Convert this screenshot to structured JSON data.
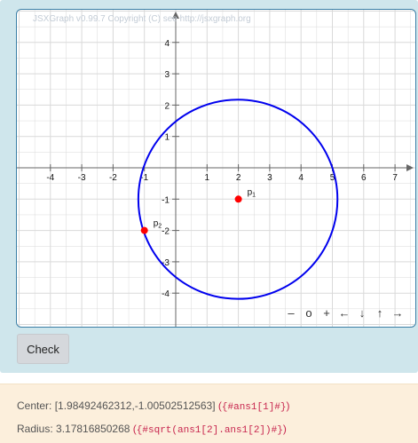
{
  "board": {
    "watermark": "JSXGraph v0.99.7 Copyright (C) see http://jsxgraph.org",
    "x_ticks": [
      "-4",
      "-3",
      "-2",
      "-1",
      "1",
      "2",
      "3",
      "4",
      "5",
      "6",
      "7"
    ],
    "y_ticks": [
      "4",
      "3",
      "2",
      "1",
      "-1",
      "-2",
      "-3",
      "-4"
    ],
    "points": [
      {
        "name": "p",
        "sub": "1",
        "x": 2,
        "y": -1
      },
      {
        "name": "p",
        "sub": "2",
        "x": -1,
        "y": -2
      }
    ],
    "circle": {
      "cx": 1.98492462312,
      "cy": -1.00502512563,
      "r": 3.17816850268
    },
    "colors": {
      "circle": "#0000ee",
      "point": "#ff0000",
      "grid": "#d9d9d9",
      "axis": "#666666"
    },
    "navigation": [
      "–",
      "o",
      "+",
      "←",
      "↓",
      "↑",
      "→"
    ]
  },
  "check_button": "Check",
  "feedback": {
    "center_label": "Center:",
    "center_value": "[1.98492462312,-1.00502512563]",
    "center_code": "{#ans1[1]#}",
    "radius_label": "Radius:",
    "radius_value": "3.17816850268",
    "radius_code": "{#sqrt(ans1[2].ans1[2])#}"
  }
}
